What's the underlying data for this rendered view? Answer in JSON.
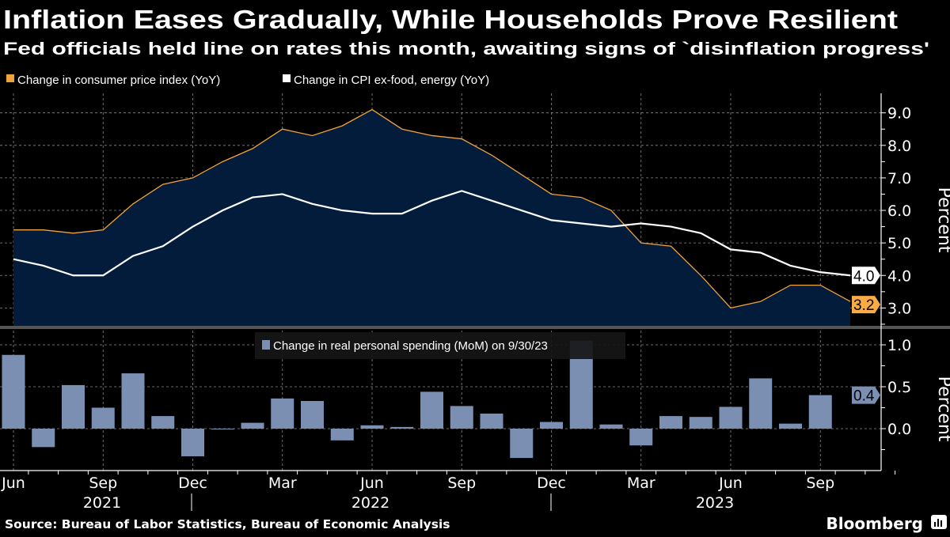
{
  "header": {
    "title": "Inflation Eases Gradually, While Households Prove Resilient",
    "subtitle": "Fed officials held line on rates this month, awaiting signs of `disinflation progress'"
  },
  "footer": {
    "source": "Source: Bureau of Labor Statistics, Bureau of Economic Analysis",
    "brand": "Bloomberg"
  },
  "colors": {
    "background": "#000000",
    "cpi_line": "#f0a23c",
    "cpi_area": "#041c3c",
    "core_line": "#ffffff",
    "bars": "#7b8fb2",
    "grid": "#8a8a8a"
  },
  "x_axis": {
    "month_labels": [
      "Jun",
      "Sep",
      "Dec",
      "Mar",
      "Jun",
      "Sep",
      "Dec",
      "Mar",
      "Jun",
      "Sep"
    ],
    "year_labels": [
      "2021",
      "2022",
      "2023"
    ]
  },
  "chart_data": [
    {
      "type": "area",
      "panel": "top",
      "ylabel": "Percent",
      "ylim": [
        2.45,
        9.6
      ],
      "yticks": [
        "9.0",
        "8.0",
        "7.0",
        "6.0",
        "5.0",
        "4.0",
        "3.0"
      ],
      "grid": true,
      "legend_placement": "top-left",
      "x": [
        "2021-06",
        "2021-07",
        "2021-08",
        "2021-09",
        "2021-10",
        "2021-11",
        "2021-12",
        "2022-01",
        "2022-02",
        "2022-03",
        "2022-04",
        "2022-05",
        "2022-06",
        "2022-07",
        "2022-08",
        "2022-09",
        "2022-10",
        "2022-11",
        "2022-12",
        "2023-01",
        "2023-02",
        "2023-03",
        "2023-04",
        "2023-05",
        "2023-06",
        "2023-07",
        "2023-08",
        "2023-09",
        "2023-10"
      ],
      "series": [
        {
          "name": "Change in consumer price index (YoY)",
          "style": "area",
          "last_value_label": "3.2",
          "values": [
            5.4,
            5.4,
            5.3,
            5.4,
            6.2,
            6.8,
            7.0,
            7.5,
            7.9,
            8.5,
            8.3,
            8.6,
            9.1,
            8.5,
            8.3,
            8.2,
            7.7,
            7.1,
            6.5,
            6.4,
            6.0,
            5.0,
            4.9,
            4.0,
            3.0,
            3.2,
            3.7,
            3.7,
            3.2
          ]
        },
        {
          "name": "Change in CPI ex-food, energy (YoY)",
          "style": "line",
          "last_value_label": "4.0",
          "values": [
            4.5,
            4.3,
            4.0,
            4.0,
            4.6,
            4.9,
            5.5,
            6.0,
            6.4,
            6.5,
            6.2,
            6.0,
            5.9,
            5.9,
            6.3,
            6.6,
            6.3,
            6.0,
            5.7,
            5.6,
            5.5,
            5.6,
            5.5,
            5.3,
            4.8,
            4.7,
            4.3,
            4.1,
            4.0
          ]
        }
      ]
    },
    {
      "type": "bar",
      "panel": "bottom",
      "ylabel": "Percent",
      "ylim": [
        -0.5,
        1.17
      ],
      "yticks": [
        "1.0",
        "0.5",
        "0.0"
      ],
      "grid": true,
      "legend_placement": "top-center",
      "x": [
        "2021-06",
        "2021-07",
        "2021-08",
        "2021-09",
        "2021-10",
        "2021-11",
        "2021-12",
        "2022-01",
        "2022-02",
        "2022-03",
        "2022-04",
        "2022-05",
        "2022-06",
        "2022-07",
        "2022-08",
        "2022-09",
        "2022-10",
        "2022-11",
        "2022-12",
        "2023-01",
        "2023-02",
        "2023-03",
        "2023-04",
        "2023-05",
        "2023-06",
        "2023-07",
        "2023-08",
        "2023-09"
      ],
      "series": [
        {
          "name": "Change in real personal spending (MoM) on 9/30/23",
          "last_value_label": "0.4",
          "values": [
            0.88,
            -0.22,
            0.52,
            0.25,
            0.66,
            0.15,
            -0.33,
            -0.01,
            0.07,
            0.36,
            0.33,
            -0.14,
            0.04,
            0.02,
            0.44,
            0.27,
            0.18,
            -0.35,
            0.08,
            1.05,
            0.05,
            -0.2,
            0.15,
            0.14,
            0.26,
            0.6,
            0.06,
            0.4
          ]
        }
      ]
    }
  ]
}
